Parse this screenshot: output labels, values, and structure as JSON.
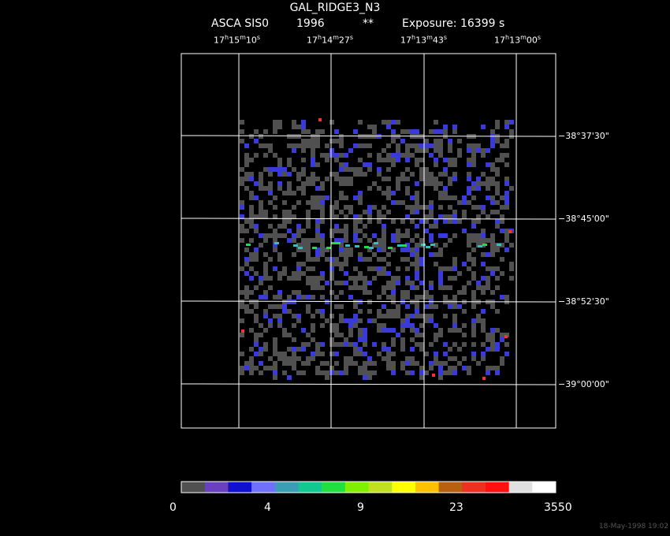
{
  "header": {
    "target": "GAL_RIDGE3_N3",
    "instrument": "ASCA SIS0",
    "year": "1996",
    "stars": "**",
    "exposure": "Exposure: 16399 s"
  },
  "ra_labels": [
    {
      "h": "17",
      "m": "15",
      "s": "10"
    },
    {
      "h": "17",
      "m": "14",
      "s": "27"
    },
    {
      "h": "17",
      "m": "13",
      "s": "43"
    },
    {
      "h": "17",
      "m": "13",
      "s": "00"
    }
  ],
  "dec_labels": [
    "−38°37'30\"",
    "−38°45'00\"",
    "−38°52'30\"",
    "−39°00'00\""
  ],
  "colorbar": {
    "labels": [
      "0",
      "4",
      "9",
      "23",
      "3550"
    ],
    "colors": [
      "#505050",
      "#6a40c0",
      "#1010d0",
      "#7070ff",
      "#3a9fb5",
      "#10c890",
      "#20e040",
      "#80f000",
      "#c0e020",
      "#ffff00",
      "#ffc000",
      "#b86010",
      "#ee3020",
      "#ff1010",
      "#e0e0e0",
      "#ffffff"
    ]
  },
  "image_colors": {
    "background": "#000000",
    "grid": "#ffffff",
    "low": "#505050",
    "mid": "#3a3ad8",
    "high_cyan": "#30c0c0",
    "high_green": "#20e040",
    "high_red": "#ff3030"
  },
  "timestamp": "18-May-1998 19:02"
}
